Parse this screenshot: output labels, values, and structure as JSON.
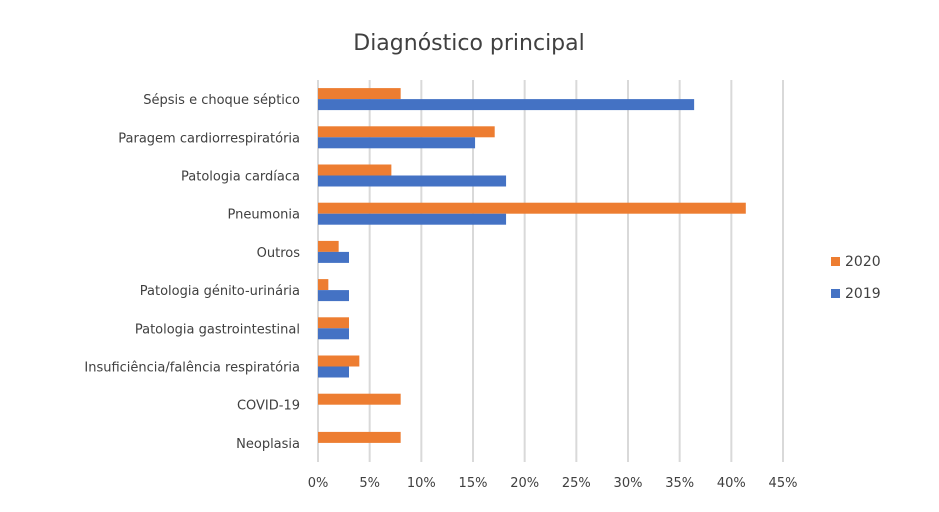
{
  "chart_data": {
    "type": "bar",
    "orientation": "horizontal",
    "title": "Diagnóstico principal",
    "xlabel": "",
    "ylabel": "",
    "categories": [
      "Sépsis e choque séptico",
      "Paragem cardiorrespiratória",
      "Patologia cardíaca",
      "Pneumonia",
      "Outros",
      "Patologia génito-urinária",
      "Patologia gastrointestinal",
      "Insuficiência/falência respiratória",
      "COVID-19",
      "Neoplasia"
    ],
    "series": [
      {
        "name": "2020",
        "color": "#ed7d31",
        "values": [
          8.0,
          17.1,
          7.1,
          41.4,
          2.0,
          1.0,
          3.0,
          4.0,
          8.0,
          8.0
        ]
      },
      {
        "name": "2019",
        "color": "#4472c4",
        "values": [
          36.4,
          15.2,
          18.2,
          18.2,
          3.0,
          3.0,
          3.0,
          3.0,
          0,
          0
        ]
      }
    ],
    "xlim": [
      0,
      45
    ],
    "xticks": [
      "0%",
      "5%",
      "10%",
      "15%",
      "20%",
      "25%",
      "30%",
      "35%",
      "40%",
      "45%"
    ],
    "xtick_values": [
      0,
      5,
      10,
      15,
      20,
      25,
      30,
      35,
      40,
      45
    ],
    "unit": "%",
    "grid": "vertical",
    "legend": {
      "position": "right",
      "entries": [
        "2020",
        "2019"
      ]
    }
  }
}
